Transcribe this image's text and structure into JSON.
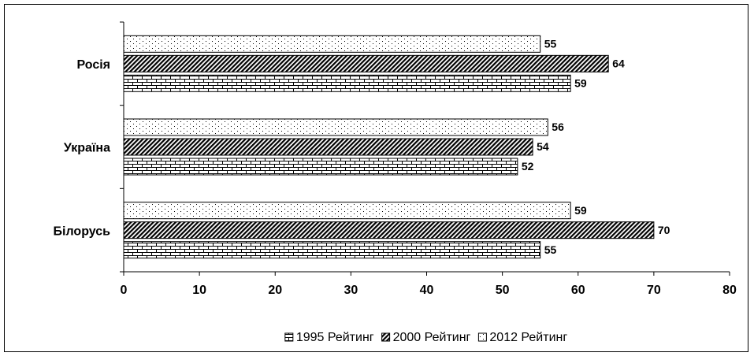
{
  "chart_data": {
    "type": "barh",
    "categories": [
      "Росія",
      "Україна",
      "Білорусь"
    ],
    "series": [
      {
        "name": "1995 Рейтинг",
        "color": "#000000",
        "pattern": "brick",
        "values": [
          59,
          52,
          55
        ]
      },
      {
        "name": "2000 Рейтинг",
        "color": "#000000",
        "pattern": "diagonal",
        "values": [
          64,
          54,
          70
        ]
      },
      {
        "name": "2012 Рейтинг",
        "color": "#000000",
        "pattern": "dots",
        "values": [
          55,
          56,
          59
        ]
      }
    ],
    "xlim": [
      0,
      80
    ],
    "xticks": [
      0,
      10,
      20,
      30,
      40,
      50,
      60,
      70,
      80
    ],
    "legend": "bottom"
  }
}
